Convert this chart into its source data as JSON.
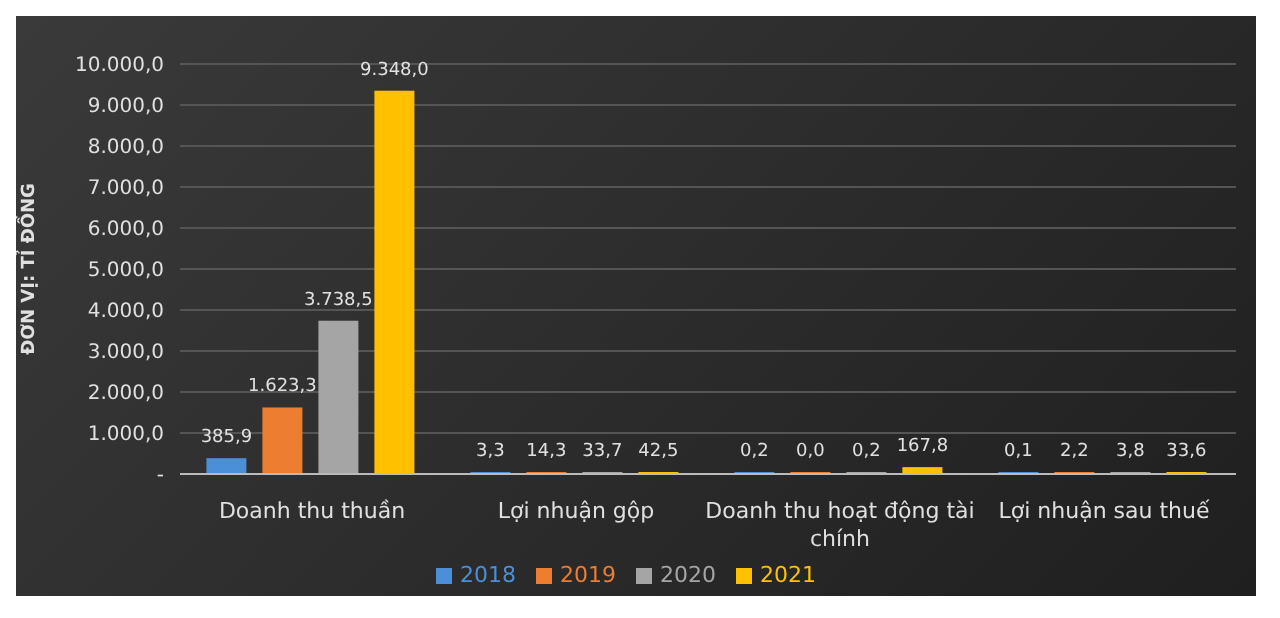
{
  "chart_data": {
    "type": "bar",
    "ylabel": "ĐƠN VỊ: TỈ ĐỒNG",
    "categories": [
      "Doanh thu thuần",
      "Lợi nhuận gộp",
      "Doanh thu hoạt động tài chính",
      "Lợi nhuận sau thuế"
    ],
    "series": [
      {
        "name": "2018",
        "color": "#4a8fd8",
        "values": [
          385.9,
          3.3,
          0.2,
          0.1
        ],
        "value_labels": [
          "385,9",
          "3,3",
          "0,2",
          "0,1"
        ]
      },
      {
        "name": "2019",
        "color": "#ed7d31",
        "values": [
          1623.3,
          14.3,
          0.0,
          2.2
        ],
        "value_labels": [
          "1.623,3",
          "14,3",
          "0,0",
          "2,2"
        ]
      },
      {
        "name": "2020",
        "color": "#a5a5a5",
        "values": [
          3738.5,
          33.7,
          0.2,
          3.8
        ],
        "value_labels": [
          "3.738,5",
          "33,7",
          "0,2",
          "3,8"
        ]
      },
      {
        "name": "2021",
        "color": "#ffc000",
        "values": [
          9348.0,
          42.5,
          167.8,
          33.6
        ],
        "value_labels": [
          "9.348,0",
          "42,5",
          "167,8",
          "33,6"
        ]
      }
    ],
    "ylim": [
      0,
      10000
    ],
    "yticks": [
      {
        "value": 0,
        "label": "-"
      },
      {
        "value": 1000,
        "label": "1.000,0"
      },
      {
        "value": 2000,
        "label": "2.000,0"
      },
      {
        "value": 3000,
        "label": "3.000,0"
      },
      {
        "value": 4000,
        "label": "4.000,0"
      },
      {
        "value": 5000,
        "label": "5.000,0"
      },
      {
        "value": 6000,
        "label": "6.000,0"
      },
      {
        "value": 7000,
        "label": "7.000,0"
      },
      {
        "value": 8000,
        "label": "8.000,0"
      },
      {
        "value": 9000,
        "label": "9.000,0"
      },
      {
        "value": 10000,
        "label": "10.000,0"
      }
    ],
    "grid": "y",
    "legend": "bottom"
  }
}
